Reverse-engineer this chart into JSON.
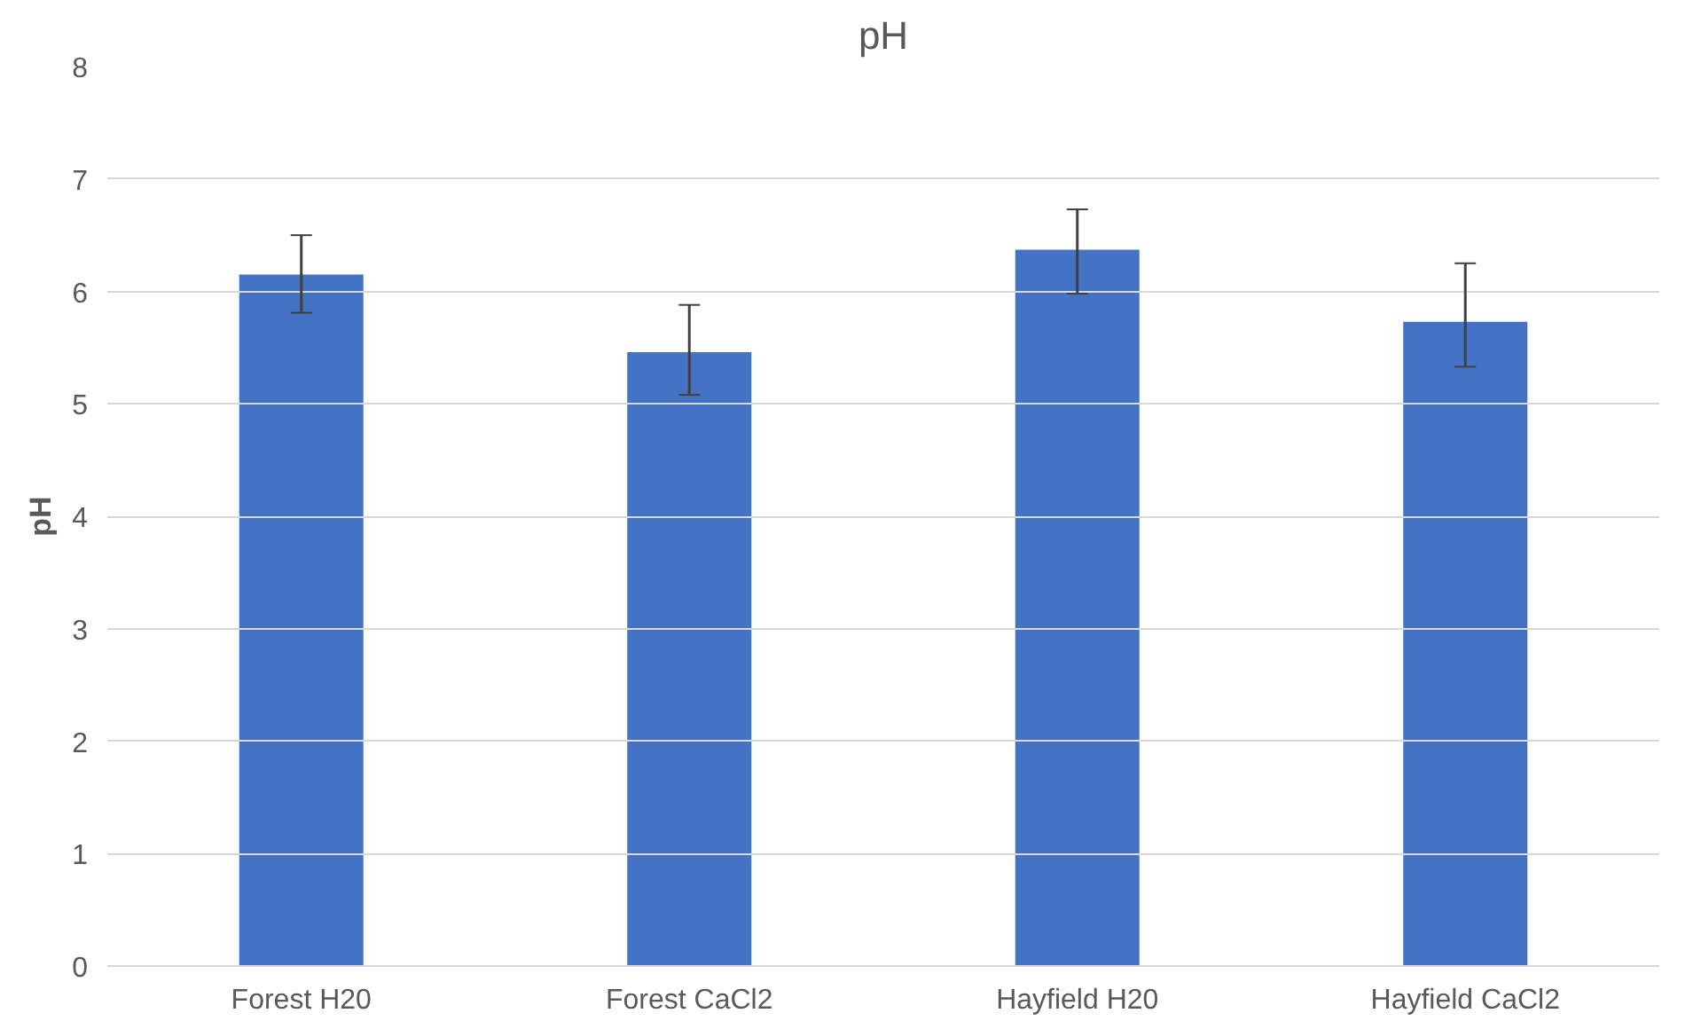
{
  "chart_data": {
    "type": "bar",
    "title": "pH",
    "ylabel": "pH",
    "categories": [
      "Forest H20",
      "Forest CaCl2",
      "Hayfield H20",
      "Hayfield CaCl2"
    ],
    "values": [
      6.15,
      5.46,
      6.37,
      5.73
    ],
    "errors": [
      [
        5.81,
        6.5
      ],
      [
        5.08,
        5.88
      ],
      [
        5.98,
        6.73
      ],
      [
        5.33,
        6.25
      ]
    ],
    "color": "#4472c4",
    "ylim": [
      0,
      8
    ],
    "yticks": [
      0,
      1,
      2,
      3,
      4,
      5,
      6,
      7,
      8
    ],
    "grid": "y"
  }
}
